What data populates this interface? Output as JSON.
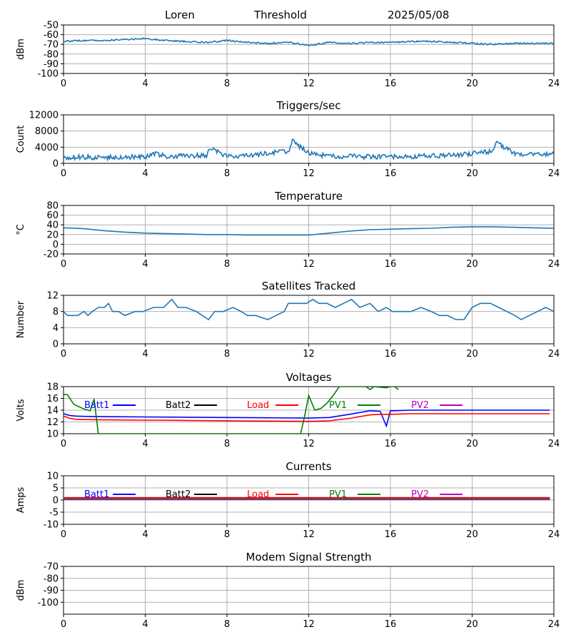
{
  "header": {
    "site": "Loren",
    "mode": "Threshold",
    "date": "2025/05/08"
  },
  "chart_data": [
    {
      "type": "line",
      "title": "",
      "ylabel": "dBm",
      "xlim": [
        0,
        24
      ],
      "ylim": [
        -100,
        -50
      ],
      "xticks": [
        0,
        4,
        8,
        12,
        16,
        20,
        24
      ],
      "yticks": [
        -100,
        -90,
        -80,
        -70,
        -60,
        -50
      ],
      "grid": true,
      "series": [
        {
          "name": "",
          "color": "#1f77b4",
          "noise": 0.8,
          "x": [
            0,
            1,
            2,
            3,
            4,
            5,
            6,
            7,
            8,
            9,
            10,
            11,
            12,
            13,
            14,
            15,
            16,
            17,
            18,
            19,
            20,
            21,
            22,
            23,
            24
          ],
          "y": [
            -67,
            -66,
            -66,
            -65,
            -64,
            -66,
            -67,
            -68,
            -66,
            -68,
            -69,
            -68,
            -71,
            -68,
            -69,
            -68,
            -68,
            -67,
            -67,
            -68,
            -69,
            -70,
            -69,
            -69,
            -69
          ]
        }
      ]
    },
    {
      "type": "line",
      "title": "Triggers/sec",
      "ylabel": "Count",
      "xlim": [
        0,
        24
      ],
      "ylim": [
        0,
        12000
      ],
      "xticks": [
        0,
        4,
        8,
        12,
        16,
        20,
        24
      ],
      "yticks": [
        0,
        4000,
        8000,
        12000
      ],
      "grid": true,
      "series": [
        {
          "name": "",
          "color": "#1f77b4",
          "noise": 600,
          "x": [
            0,
            1,
            2,
            3,
            4,
            4.5,
            5,
            6,
            7,
            7.2,
            8,
            9,
            10,
            11,
            11.2,
            12,
            13,
            14,
            15,
            16,
            17,
            18,
            19,
            20,
            21,
            21.2,
            22,
            23,
            24
          ],
          "y": [
            1500,
            1500,
            1500,
            1600,
            1600,
            2500,
            1700,
            1800,
            2000,
            3800,
            1800,
            2000,
            2500,
            3000,
            5500,
            2500,
            1800,
            1700,
            1600,
            1600,
            1700,
            1800,
            2000,
            2500,
            3000,
            5200,
            2500,
            2200,
            2300
          ]
        }
      ]
    },
    {
      "type": "line",
      "title": "Temperature",
      "ylabel": "°C",
      "xlim": [
        0,
        24
      ],
      "ylim": [
        -20,
        80
      ],
      "xticks": [
        0,
        4,
        8,
        12,
        16,
        20,
        24
      ],
      "yticks": [
        -20,
        0,
        20,
        40,
        60,
        80
      ],
      "grid": true,
      "series": [
        {
          "name": "",
          "color": "#1f77b4",
          "noise": 0,
          "x": [
            0,
            1,
            2,
            3,
            4,
            5,
            6,
            7,
            8,
            9,
            10,
            11,
            12,
            13,
            14,
            15,
            16,
            17,
            18,
            19,
            20,
            21,
            22,
            23,
            24
          ],
          "y": [
            34,
            32,
            28,
            25,
            23,
            22,
            21,
            20,
            20,
            19,
            19,
            19,
            19,
            23,
            27,
            30,
            31,
            32,
            33,
            35,
            36,
            36,
            35,
            34,
            33
          ]
        }
      ]
    },
    {
      "type": "line",
      "title": "Satellites Tracked",
      "ylabel": "Number",
      "xlim": [
        0,
        24
      ],
      "ylim": [
        0,
        12
      ],
      "xticks": [
        0,
        4,
        8,
        12,
        16,
        20,
        24
      ],
      "yticks": [
        0,
        4,
        8,
        12
      ],
      "grid": true,
      "series": [
        {
          "name": "",
          "color": "#1f77b4",
          "noise": 0,
          "x": [
            0,
            0.2,
            0.7,
            1.0,
            1.2,
            1.4,
            1.7,
            2.0,
            2.2,
            2.4,
            2.7,
            3.0,
            3.5,
            3.9,
            4.4,
            4.9,
            5.3,
            5.6,
            6.0,
            6.5,
            6.8,
            7.1,
            7.4,
            7.8,
            8.3,
            8.7,
            9.0,
            9.4,
            10.0,
            10.4,
            10.8,
            11.0,
            11.4,
            11.9,
            12.2,
            12.5,
            12.9,
            13.3,
            13.7,
            14.1,
            14.5,
            15.0,
            15.4,
            15.8,
            16.1,
            16.4,
            17.0,
            17.5,
            18.0,
            18.4,
            18.8,
            19.2,
            19.6,
            20.0,
            20.4,
            20.9,
            21.3,
            21.7,
            22.1,
            22.4,
            22.8,
            23.2,
            23.6,
            24.0
          ],
          "y": [
            8,
            7,
            7,
            8,
            7,
            8,
            9,
            9,
            10,
            8,
            8,
            7,
            8,
            8,
            9,
            9,
            11,
            9,
            9,
            8,
            7,
            6,
            8,
            8,
            9,
            8,
            7,
            7,
            6,
            7,
            8,
            10,
            10,
            10,
            11,
            10,
            10,
            9,
            10,
            11,
            9,
            10,
            8,
            9,
            8,
            8,
            8,
            9,
            8,
            7,
            7,
            6,
            6,
            9,
            10,
            10,
            9,
            8,
            7,
            6,
            7,
            8,
            9,
            8
          ]
        }
      ]
    },
    {
      "type": "line",
      "title": "Voltages",
      "ylabel": "Volts",
      "xlim": [
        0,
        24
      ],
      "ylim": [
        10,
        18
      ],
      "xticks": [
        0,
        4,
        8,
        12,
        16,
        20,
        24
      ],
      "yticks": [
        10,
        12,
        14,
        16,
        18
      ],
      "grid": true,
      "legend": "top",
      "series": [
        {
          "name": "Batt1",
          "color": "#0000ff",
          "noise": 0,
          "x": [
            0,
            0.3,
            0.6,
            1.0,
            2.0,
            4.0,
            6.0,
            8.0,
            10.0,
            12.0,
            13.0,
            14.0,
            15.0,
            15.5,
            15.8,
            16.0,
            16.2,
            17.0,
            20.0,
            23.8
          ],
          "y": [
            13.4,
            13.1,
            13.0,
            12.95,
            12.9,
            12.85,
            12.8,
            12.75,
            12.7,
            12.65,
            12.75,
            13.3,
            13.9,
            13.8,
            11.3,
            13.9,
            13.9,
            14.0,
            14.0,
            14.0
          ]
        },
        {
          "name": "Batt2",
          "color": "#000000",
          "noise": 0,
          "x": [],
          "y": []
        },
        {
          "name": "Load",
          "color": "#ff0000",
          "noise": 0,
          "x": [
            0,
            0.3,
            0.6,
            1.0,
            2.0,
            4.0,
            6.0,
            8.0,
            10.0,
            12.0,
            13.0,
            14.0,
            15.0,
            15.5,
            16.0,
            17.0,
            20.0,
            23.8
          ],
          "y": [
            13.0,
            12.6,
            12.45,
            12.4,
            12.35,
            12.3,
            12.25,
            12.2,
            12.15,
            12.1,
            12.2,
            12.6,
            13.2,
            13.3,
            13.3,
            13.4,
            13.4,
            13.4
          ]
        },
        {
          "name": "PV1",
          "color": "#008000",
          "noise": 0,
          "x": [
            0,
            0.2,
            0.5,
            1.0,
            1.2,
            1.3,
            1.5,
            1.7,
            11.6,
            11.8,
            12.0,
            12.3,
            12.6,
            12.9,
            13.2,
            13.5,
            14.8,
            15.0,
            15.2,
            15.5,
            15.8,
            16.0,
            16.2,
            16.4
          ],
          "y": [
            16.7,
            16.6,
            15.0,
            14.2,
            14.0,
            13.9,
            15.9,
            10.0,
            10.0,
            13.0,
            16.5,
            14.0,
            14.3,
            15.2,
            16.5,
            18.0,
            18.0,
            17.5,
            18.0,
            17.9,
            17.8,
            18.0,
            18.0,
            17.5
          ]
        },
        {
          "name": "PV2",
          "color": "#bf00bf",
          "noise": 0,
          "x": [],
          "y": []
        }
      ]
    },
    {
      "type": "line",
      "title": "Currents",
      "ylabel": "Amps",
      "xlim": [
        0,
        24
      ],
      "ylim": [
        -10,
        10
      ],
      "xticks": [
        0,
        4,
        8,
        12,
        16,
        20,
        24
      ],
      "yticks": [
        -10,
        -5,
        0,
        5,
        10
      ],
      "grid": true,
      "legend": "top",
      "series": [
        {
          "name": "Batt1",
          "color": "#0000ff",
          "noise": 0,
          "x": [
            0,
            23.8
          ],
          "y": [
            0.5,
            0.5
          ]
        },
        {
          "name": "Batt2",
          "color": "#000000",
          "noise": 0,
          "x": [
            0,
            23.8
          ],
          "y": [
            0.3,
            0.3
          ]
        },
        {
          "name": "Load",
          "color": "#ff0000",
          "noise": 0,
          "x": [
            0,
            23.8
          ],
          "y": [
            1.0,
            1.0
          ]
        },
        {
          "name": "PV1",
          "color": "#008000",
          "noise": 0,
          "x": [
            0,
            23.8
          ],
          "y": [
            0.6,
            0.6
          ]
        },
        {
          "name": "PV2",
          "color": "#bf00bf",
          "noise": 0,
          "x": [
            0,
            23.8
          ],
          "y": [
            0.2,
            0.2
          ]
        }
      ]
    },
    {
      "type": "line",
      "title": "Modem Signal Strength",
      "ylabel": "dBm",
      "xlim": [
        0,
        24
      ],
      "ylim": [
        -110,
        -70
      ],
      "xticks": [
        0,
        4,
        8,
        12,
        16,
        20,
        24
      ],
      "yticks": [
        -100,
        -90,
        -80,
        -70
      ],
      "grid": true,
      "series": []
    }
  ]
}
